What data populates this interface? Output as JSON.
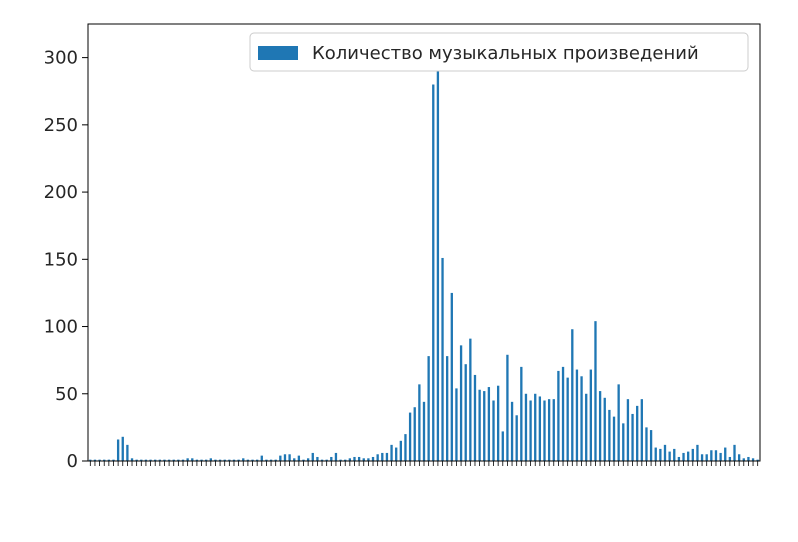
{
  "chart_data": {
    "type": "bar",
    "title": "",
    "xlabel": "",
    "ylabel": "",
    "ylim": [
      0,
      325
    ],
    "yticks": [
      0,
      50,
      100,
      150,
      200,
      250,
      300
    ],
    "grid": false,
    "legend_position": "top-right",
    "series": [
      {
        "name": "Количество музыкальных произведений",
        "color": "#1f77b4",
        "values": [
          1,
          1,
          1,
          1,
          1,
          1,
          16,
          18,
          12,
          2,
          1,
          1,
          1,
          1,
          1,
          1,
          1,
          1,
          1,
          1,
          1,
          2,
          2,
          1,
          1,
          1,
          2,
          1,
          1,
          1,
          1,
          1,
          1,
          2,
          1,
          1,
          1,
          4,
          1,
          1,
          1,
          4,
          5,
          5,
          2,
          4,
          1,
          2,
          6,
          3,
          1,
          1,
          3,
          6,
          1,
          1,
          2,
          3,
          3,
          2,
          2,
          3,
          5,
          6,
          6,
          12,
          10,
          15,
          20,
          36,
          40,
          57,
          44,
          78,
          280,
          300,
          151,
          78,
          125,
          54,
          86,
          72,
          91,
          64,
          53,
          52,
          55,
          45,
          56,
          22,
          79,
          44,
          34,
          70,
          50,
          45,
          50,
          48,
          45,
          46,
          46,
          67,
          70,
          62,
          98,
          68,
          63,
          50,
          68,
          104,
          52,
          47,
          38,
          33,
          57,
          28,
          46,
          35,
          41,
          46,
          25,
          23,
          10,
          9,
          12,
          7,
          9,
          3,
          6,
          7,
          9,
          12,
          5,
          5,
          8,
          8,
          6,
          10,
          3,
          12,
          5,
          2,
          3,
          2,
          1
        ]
      }
    ]
  }
}
